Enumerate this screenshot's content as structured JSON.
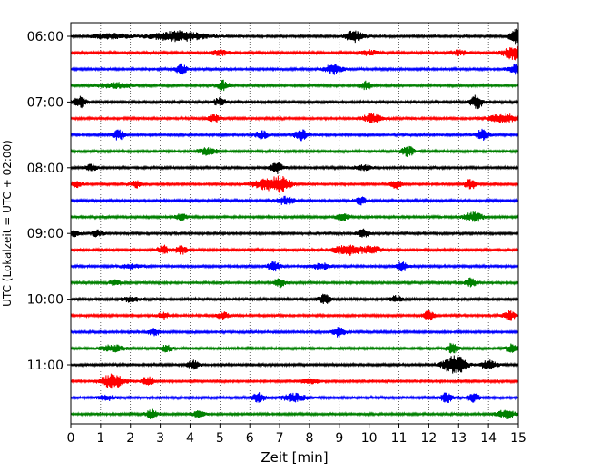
{
  "chart_data": {
    "type": "line",
    "title": "",
    "xlabel": "Zeit  [min]",
    "ylabel": "UTC (Lokalzeit = UTC + 02:00)",
    "xlim": [
      0,
      15
    ],
    "xticks": [
      "0",
      "1",
      "2",
      "3",
      "4",
      "5",
      "6",
      "7",
      "8",
      "9",
      "10",
      "11",
      "12",
      "13",
      "14",
      "15"
    ],
    "yticks": [
      "06:00",
      "07:00",
      "08:00",
      "09:00",
      "10:00",
      "11:00"
    ],
    "grid": "vertical dotted",
    "color_cycle": [
      "#000000",
      "#ff0000",
      "#0000ff",
      "#008000"
    ],
    "row_interval_minutes": 15,
    "series": [
      {
        "start": "06:00",
        "color": "#000000",
        "events": [
          [
            1.3,
            0.3,
            0.6
          ],
          [
            3.6,
            0.6,
            0.9
          ],
          [
            9.5,
            0.7,
            0.3
          ],
          [
            14.9,
            0.9,
            0.2
          ]
        ]
      },
      {
        "start": "06:15",
        "color": "#ff0000",
        "events": [
          [
            5.0,
            0.3,
            0.3
          ],
          [
            10.0,
            0.3,
            0.3
          ],
          [
            13.0,
            0.3,
            0.3
          ],
          [
            15.0,
            0.9,
            0.5
          ]
        ]
      },
      {
        "start": "06:30",
        "color": "#0000ff",
        "events": [
          [
            3.7,
            0.6,
            0.2
          ],
          [
            8.8,
            0.6,
            0.3
          ],
          [
            15.0,
            0.7,
            0.3
          ]
        ]
      },
      {
        "start": "06:45",
        "color": "#008000",
        "events": [
          [
            1.5,
            0.3,
            0.6
          ],
          [
            5.1,
            0.6,
            0.2
          ],
          [
            9.9,
            0.5,
            0.2
          ]
        ]
      },
      {
        "start": "07:00",
        "color": "#000000",
        "events": [
          [
            0.3,
            0.7,
            0.2
          ],
          [
            5.0,
            0.5,
            0.2
          ],
          [
            13.6,
            0.8,
            0.2
          ]
        ]
      },
      {
        "start": "07:15",
        "color": "#ff0000",
        "events": [
          [
            4.8,
            0.5,
            0.2
          ],
          [
            10.1,
            0.6,
            0.3
          ],
          [
            14.5,
            0.5,
            0.5
          ]
        ]
      },
      {
        "start": "07:30",
        "color": "#0000ff",
        "events": [
          [
            1.6,
            0.6,
            0.2
          ],
          [
            6.4,
            0.5,
            0.2
          ],
          [
            7.7,
            0.7,
            0.2
          ],
          [
            13.8,
            0.7,
            0.2
          ]
        ]
      },
      {
        "start": "07:45",
        "color": "#008000",
        "events": [
          [
            4.6,
            0.5,
            0.3
          ],
          [
            11.3,
            0.6,
            0.2
          ]
        ]
      },
      {
        "start": "08:00",
        "color": "#000000",
        "events": [
          [
            0.7,
            0.4,
            0.2
          ],
          [
            6.9,
            0.7,
            0.2
          ],
          [
            9.8,
            0.3,
            0.3
          ]
        ]
      },
      {
        "start": "08:15",
        "color": "#ff0000",
        "events": [
          [
            0.2,
            0.4,
            0.2
          ],
          [
            2.2,
            0.4,
            0.2
          ],
          [
            6.6,
            0.7,
            0.5
          ],
          [
            7.1,
            0.7,
            0.3
          ],
          [
            10.9,
            0.5,
            0.2
          ],
          [
            13.4,
            0.6,
            0.2
          ]
        ]
      },
      {
        "start": "08:30",
        "color": "#0000ff",
        "events": [
          [
            7.2,
            0.5,
            0.3
          ],
          [
            9.7,
            0.5,
            0.2
          ]
        ]
      },
      {
        "start": "08:45",
        "color": "#008000",
        "events": [
          [
            3.7,
            0.4,
            0.2
          ],
          [
            9.1,
            0.5,
            0.2
          ],
          [
            13.5,
            0.6,
            0.3
          ]
        ]
      },
      {
        "start": "09:00",
        "color": "#000000",
        "events": [
          [
            0.1,
            0.4,
            0.2
          ],
          [
            0.9,
            0.4,
            0.2
          ],
          [
            9.8,
            0.5,
            0.2
          ]
        ]
      },
      {
        "start": "09:15",
        "color": "#ff0000",
        "events": [
          [
            3.1,
            0.5,
            0.2
          ],
          [
            3.7,
            0.5,
            0.2
          ],
          [
            9.3,
            0.6,
            0.5
          ],
          [
            10.1,
            0.4,
            0.3
          ]
        ]
      },
      {
        "start": "09:30",
        "color": "#0000ff",
        "events": [
          [
            2.0,
            0.3,
            0.3
          ],
          [
            6.8,
            0.6,
            0.2
          ],
          [
            8.4,
            0.4,
            0.3
          ],
          [
            11.1,
            0.6,
            0.2
          ]
        ]
      },
      {
        "start": "09:45",
        "color": "#008000",
        "events": [
          [
            1.5,
            0.4,
            0.2
          ],
          [
            7.0,
            0.5,
            0.2
          ],
          [
            13.4,
            0.5,
            0.2
          ]
        ]
      },
      {
        "start": "10:00",
        "color": "#000000",
        "events": [
          [
            2.0,
            0.3,
            0.3
          ],
          [
            8.5,
            0.6,
            0.2
          ],
          [
            10.9,
            0.4,
            0.2
          ]
        ]
      },
      {
        "start": "10:15",
        "color": "#ff0000",
        "events": [
          [
            3.1,
            0.4,
            0.2
          ],
          [
            5.1,
            0.4,
            0.2
          ],
          [
            12.0,
            0.6,
            0.2
          ],
          [
            14.7,
            0.6,
            0.2
          ]
        ]
      },
      {
        "start": "10:30",
        "color": "#0000ff",
        "events": [
          [
            2.8,
            0.4,
            0.2
          ],
          [
            9.0,
            0.6,
            0.2
          ]
        ]
      },
      {
        "start": "10:45",
        "color": "#008000",
        "events": [
          [
            1.4,
            0.4,
            0.4
          ],
          [
            3.2,
            0.4,
            0.2
          ],
          [
            12.8,
            0.6,
            0.2
          ],
          [
            14.8,
            0.5,
            0.2
          ]
        ]
      },
      {
        "start": "11:00",
        "color": "#000000",
        "events": [
          [
            4.1,
            0.5,
            0.2
          ],
          [
            12.7,
            0.6,
            0.3
          ],
          [
            13.0,
            0.8,
            0.3
          ],
          [
            14.0,
            0.5,
            0.3
          ]
        ]
      },
      {
        "start": "11:15",
        "color": "#ff0000",
        "events": [
          [
            1.4,
            0.9,
            0.4
          ],
          [
            2.6,
            0.6,
            0.2
          ],
          [
            8.0,
            0.3,
            0.3
          ]
        ]
      },
      {
        "start": "11:30",
        "color": "#0000ff",
        "events": [
          [
            1.2,
            0.3,
            0.3
          ],
          [
            6.3,
            0.6,
            0.2
          ],
          [
            7.5,
            0.5,
            0.4
          ],
          [
            12.6,
            0.6,
            0.2
          ],
          [
            13.5,
            0.5,
            0.2
          ]
        ]
      },
      {
        "start": "11:45",
        "color": "#008000",
        "events": [
          [
            2.7,
            0.5,
            0.2
          ],
          [
            4.3,
            0.4,
            0.2
          ],
          [
            14.6,
            0.5,
            0.3
          ]
        ]
      }
    ]
  }
}
